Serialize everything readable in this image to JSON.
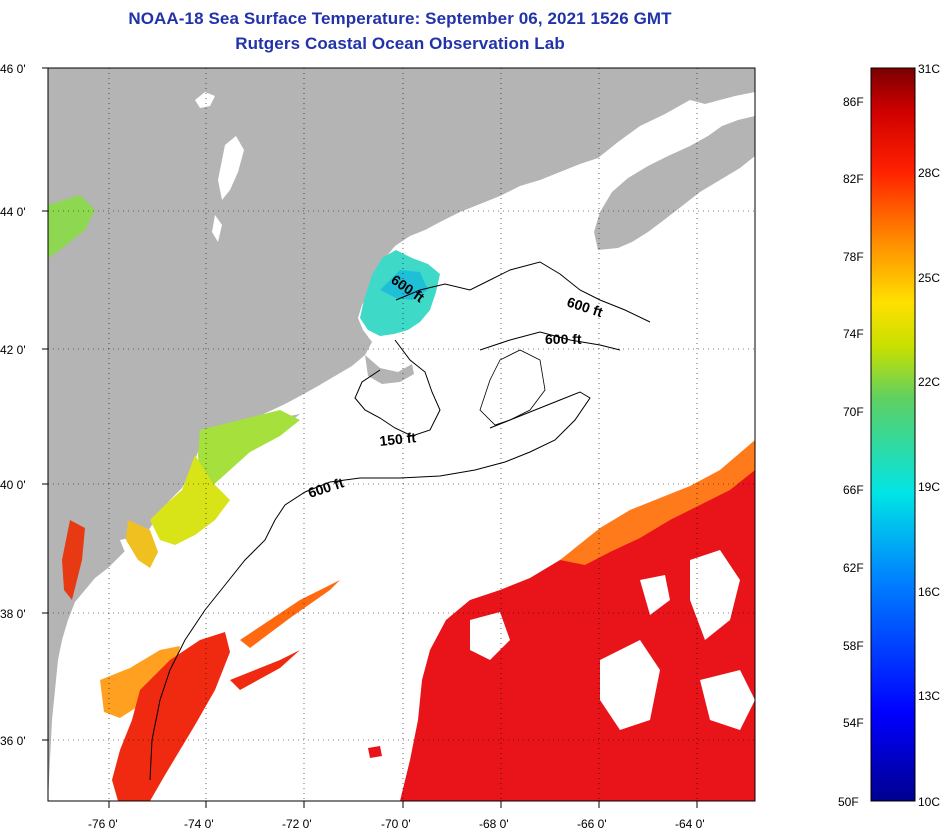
{
  "title": {
    "line1": "NOAA-18 Sea Surface Temperature:  September 06, 2021 1526 GMT",
    "line2": "Rutgers Coastal Ocean Observation Lab"
  },
  "axes": {
    "latitude_labels": [
      "46 0'",
      "44 0'",
      "42 0'",
      "40 0'",
      "38 0'",
      "36 0'"
    ],
    "longitude_labels": [
      "-76 0'",
      "-74 0'",
      "-72 0'",
      "-70 0'",
      "-68 0'",
      "-66 0'",
      "-64 0'"
    ]
  },
  "contours": [
    {
      "label": "600 ft"
    },
    {
      "label": "600 ft"
    },
    {
      "label": "600 ft"
    },
    {
      "label": "150 ft"
    },
    {
      "label": "600 ft"
    }
  ],
  "colorbar": {
    "fahrenheit_labels": [
      "86F",
      "82F",
      "78F",
      "74F",
      "70F",
      "66F",
      "62F",
      "58F",
      "54F",
      "50F"
    ],
    "celsius_labels": [
      "31C",
      "28C",
      "25C",
      "22C",
      "19C",
      "16C",
      "13C",
      "10C"
    ]
  },
  "colors": {
    "title": "#2233aa",
    "land": "#b4b4b4",
    "ocean_nodata": "#ffffff",
    "warm": "#e8141a",
    "cool": "#40e0d0"
  }
}
